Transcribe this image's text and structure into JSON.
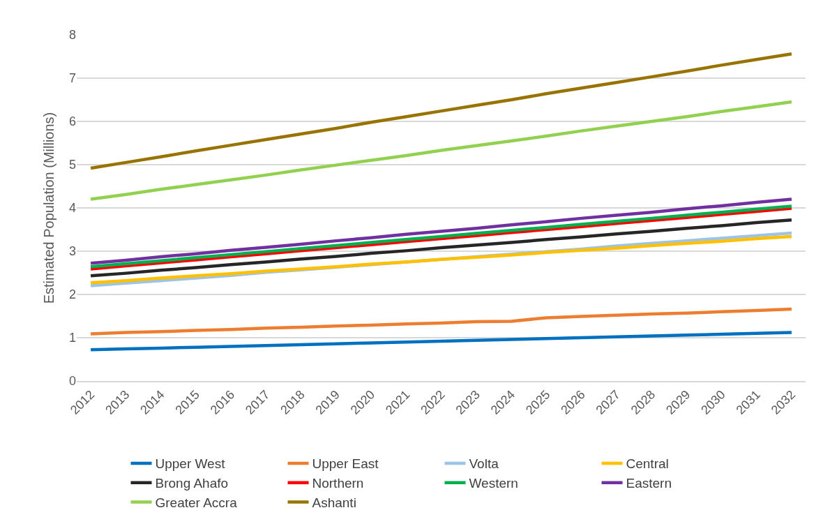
{
  "chart_data": {
    "type": "line",
    "ylabel": "Estimated Population (Millions)",
    "categories": [
      "2012",
      "2013",
      "2014",
      "2015",
      "2016",
      "2017",
      "2018",
      "2019",
      "2020",
      "2021",
      "2022",
      "2023",
      "2024",
      "2025",
      "2026",
      "2027",
      "2028",
      "2029",
      "2030",
      "2031",
      "2032"
    ],
    "ylim": [
      0,
      8
    ],
    "yticks": [
      0,
      1,
      2,
      3,
      4,
      5,
      6,
      7,
      8
    ],
    "grid": "y",
    "legend": "bottom",
    "marker": "none",
    "line_style": "solid",
    "series": [
      {
        "name": "Upper West",
        "color": "#0070c0",
        "values": [
          0.72,
          0.74,
          0.76,
          0.78,
          0.8,
          0.82,
          0.84,
          0.86,
          0.88,
          0.9,
          0.92,
          0.94,
          0.96,
          0.98,
          1.0,
          1.02,
          1.04,
          1.06,
          1.08,
          1.1,
          1.12
        ]
      },
      {
        "name": "Upper East",
        "color": "#ed7d31",
        "values": [
          1.09,
          1.12,
          1.14,
          1.17,
          1.19,
          1.22,
          1.24,
          1.27,
          1.29,
          1.32,
          1.34,
          1.37,
          1.38,
          1.46,
          1.49,
          1.52,
          1.55,
          1.57,
          1.6,
          1.63,
          1.66
        ]
      },
      {
        "name": "Volta",
        "color": "#9dc3e6",
        "values": [
          2.2,
          2.26,
          2.32,
          2.38,
          2.44,
          2.51,
          2.57,
          2.63,
          2.69,
          2.75,
          2.81,
          2.87,
          2.93,
          2.99,
          3.05,
          3.12,
          3.18,
          3.24,
          3.3,
          3.36,
          3.42
        ]
      },
      {
        "name": "Central",
        "color": "#ffc000",
        "values": [
          2.27,
          2.32,
          2.38,
          2.43,
          2.48,
          2.54,
          2.59,
          2.64,
          2.7,
          2.75,
          2.81,
          2.86,
          2.91,
          2.97,
          3.02,
          3.07,
          3.13,
          3.18,
          3.23,
          3.29,
          3.34
        ]
      },
      {
        "name": "Brong Ahafo",
        "color": "#262626",
        "values": [
          2.43,
          2.49,
          2.56,
          2.62,
          2.69,
          2.75,
          2.82,
          2.88,
          2.95,
          3.01,
          3.08,
          3.14,
          3.2,
          3.27,
          3.33,
          3.4,
          3.46,
          3.53,
          3.59,
          3.66,
          3.72
        ]
      },
      {
        "name": "Northern",
        "color": "#ff0000",
        "values": [
          2.59,
          2.66,
          2.73,
          2.8,
          2.87,
          2.94,
          3.01,
          3.08,
          3.15,
          3.22,
          3.29,
          3.36,
          3.43,
          3.5,
          3.57,
          3.64,
          3.71,
          3.78,
          3.85,
          3.92,
          3.99
        ]
      },
      {
        "name": "Western",
        "color": "#00b050",
        "values": [
          2.64,
          2.71,
          2.78,
          2.85,
          2.92,
          2.99,
          3.06,
          3.13,
          3.2,
          3.27,
          3.34,
          3.41,
          3.48,
          3.55,
          3.62,
          3.69,
          3.76,
          3.83,
          3.9,
          3.97,
          4.04
        ]
      },
      {
        "name": "Eastern",
        "color": "#7030a0",
        "values": [
          2.72,
          2.79,
          2.87,
          2.94,
          3.02,
          3.09,
          3.16,
          3.24,
          3.31,
          3.39,
          3.46,
          3.53,
          3.61,
          3.68,
          3.76,
          3.83,
          3.9,
          3.98,
          4.05,
          4.13,
          4.2
        ]
      },
      {
        "name": "Greater Accra",
        "color": "#92d050",
        "values": [
          4.2,
          4.31,
          4.43,
          4.54,
          4.65,
          4.76,
          4.88,
          4.99,
          5.1,
          5.21,
          5.33,
          5.44,
          5.55,
          5.66,
          5.78,
          5.89,
          6.0,
          6.11,
          6.23,
          6.34,
          6.45
        ]
      },
      {
        "name": "Ashanti",
        "color": "#997300",
        "values": [
          4.92,
          5.05,
          5.18,
          5.32,
          5.45,
          5.58,
          5.71,
          5.84,
          5.98,
          6.11,
          6.24,
          6.37,
          6.5,
          6.64,
          6.77,
          6.9,
          7.03,
          7.16,
          7.3,
          7.43,
          7.56
        ]
      }
    ]
  }
}
